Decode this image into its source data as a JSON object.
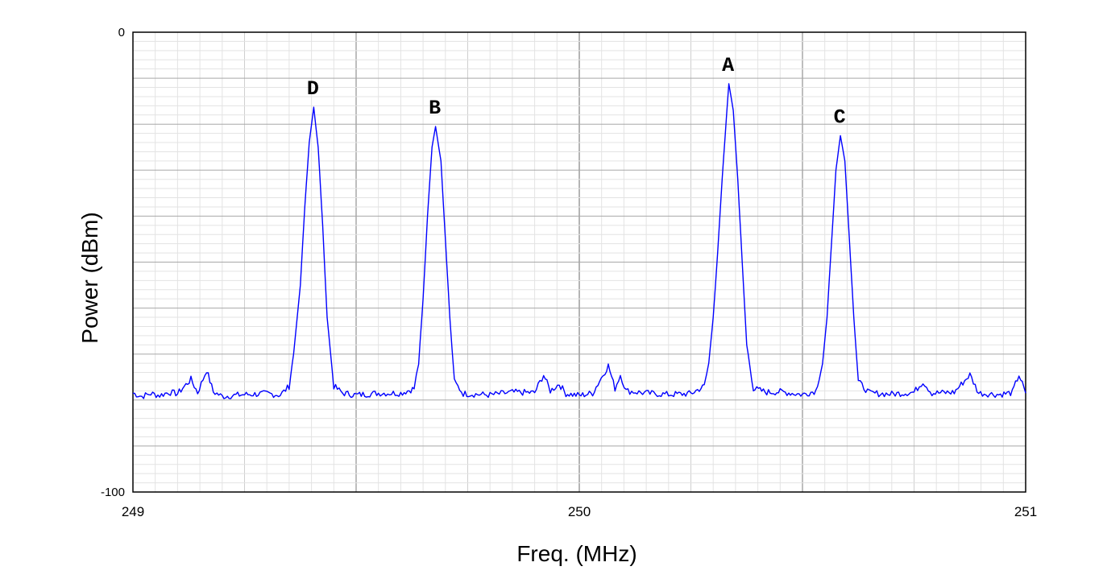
{
  "chart_data": {
    "type": "line",
    "title": "",
    "xlabel": "Freq. (MHz)",
    "ylabel": "Power (dBm)",
    "xlim": [
      249,
      251
    ],
    "ylim": [
      -100,
      0
    ],
    "x_ticks": [
      "249",
      "250",
      "251"
    ],
    "y_ticks": [
      "0",
      "-100"
    ],
    "grid": true,
    "line_color": "#0000ff",
    "noise_floor_dbm": -79,
    "series": [
      {
        "values": [
          [
            249.0,
            -78.5
          ],
          [
            249.02,
            -79.2
          ],
          [
            249.04,
            -78.6
          ],
          [
            249.06,
            -79.0
          ],
          [
            249.08,
            -78.3
          ],
          [
            249.1,
            -78.6
          ],
          [
            249.13,
            -75.5
          ],
          [
            249.145,
            -78.4
          ],
          [
            249.165,
            -73.5
          ],
          [
            249.18,
            -78.2
          ],
          [
            249.2,
            -79.2
          ],
          [
            249.25,
            -78.8
          ],
          [
            249.3,
            -78.6
          ],
          [
            249.33,
            -78.9
          ],
          [
            249.35,
            -77.0
          ],
          [
            249.36,
            -70.0
          ],
          [
            249.375,
            -55.0
          ],
          [
            249.385,
            -38.0
          ],
          [
            249.395,
            -24.0
          ],
          [
            249.405,
            -16.3
          ],
          [
            249.415,
            -25.0
          ],
          [
            249.425,
            -42.0
          ],
          [
            249.435,
            -62.0
          ],
          [
            249.45,
            -77.0
          ],
          [
            249.47,
            -78.5
          ],
          [
            249.5,
            -78.9
          ],
          [
            249.55,
            -78.5
          ],
          [
            249.6,
            -78.5
          ],
          [
            249.63,
            -77.5
          ],
          [
            249.64,
            -72.0
          ],
          [
            249.65,
            -58.0
          ],
          [
            249.66,
            -40.0
          ],
          [
            249.67,
            -25.0
          ],
          [
            249.678,
            -20.5
          ],
          [
            249.69,
            -28.0
          ],
          [
            249.7,
            -45.0
          ],
          [
            249.71,
            -62.0
          ],
          [
            249.72,
            -76.0
          ],
          [
            249.74,
            -78.6
          ],
          [
            249.8,
            -78.9
          ],
          [
            249.85,
            -78.3
          ],
          [
            249.9,
            -78.4
          ],
          [
            249.92,
            -74.5
          ],
          [
            249.935,
            -78.0
          ],
          [
            249.955,
            -76.5
          ],
          [
            249.97,
            -78.6
          ],
          [
            250.0,
            -79.0
          ],
          [
            250.03,
            -78.5
          ],
          [
            250.065,
            -72.5
          ],
          [
            250.08,
            -77.5
          ],
          [
            250.092,
            -74.5
          ],
          [
            250.105,
            -78.0
          ],
          [
            250.15,
            -78.5
          ],
          [
            250.2,
            -78.8
          ],
          [
            250.25,
            -78.6
          ],
          [
            250.28,
            -77.0
          ],
          [
            250.29,
            -72.0
          ],
          [
            250.3,
            -62.0
          ],
          [
            250.31,
            -48.0
          ],
          [
            250.32,
            -32.0
          ],
          [
            250.33,
            -18.0
          ],
          [
            250.335,
            -11.2
          ],
          [
            250.345,
            -17.0
          ],
          [
            250.355,
            -32.0
          ],
          [
            250.365,
            -50.0
          ],
          [
            250.375,
            -68.0
          ],
          [
            250.39,
            -77.5
          ],
          [
            250.42,
            -78.3
          ],
          [
            250.45,
            -78.2
          ],
          [
            250.5,
            -78.8
          ],
          [
            250.53,
            -78.0
          ],
          [
            250.545,
            -72.0
          ],
          [
            250.555,
            -62.0
          ],
          [
            250.565,
            -46.0
          ],
          [
            250.575,
            -30.0
          ],
          [
            250.585,
            -22.5
          ],
          [
            250.595,
            -28.0
          ],
          [
            250.605,
            -45.0
          ],
          [
            250.615,
            -62.0
          ],
          [
            250.625,
            -76.0
          ],
          [
            250.65,
            -78.5
          ],
          [
            250.7,
            -78.7
          ],
          [
            250.75,
            -78.3
          ],
          [
            250.77,
            -76.0
          ],
          [
            250.79,
            -78.5
          ],
          [
            250.84,
            -78.3
          ],
          [
            250.875,
            -74.5
          ],
          [
            250.895,
            -78.5
          ],
          [
            250.94,
            -78.8
          ],
          [
            250.97,
            -78.4
          ],
          [
            250.985,
            -74.5
          ],
          [
            251.0,
            -78.5
          ]
        ]
      }
    ],
    "annotations": [
      {
        "text": "D",
        "x": 249.405,
        "y": -16.3
      },
      {
        "text": "B",
        "x": 249.678,
        "y": -20.5
      },
      {
        "text": "A",
        "x": 250.335,
        "y": -11.2
      },
      {
        "text": "C",
        "x": 250.585,
        "y": -22.5
      }
    ]
  }
}
